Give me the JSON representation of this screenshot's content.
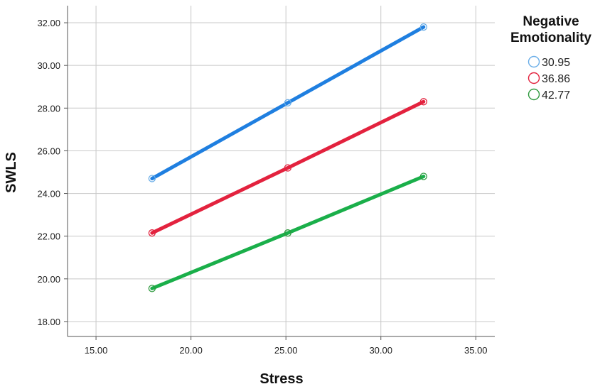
{
  "chart_data": {
    "type": "line",
    "xlabel": "Stress",
    "ylabel": "SWLS",
    "xlim": [
      13.5,
      36.0
    ],
    "ylim": [
      17.3,
      32.8
    ],
    "xticks": [
      "15.00",
      "20.00",
      "25.00",
      "30.00",
      "35.00"
    ],
    "yticks": [
      "18.00",
      "20.00",
      "22.00",
      "24.00",
      "26.00",
      "28.00",
      "30.00",
      "32.00"
    ],
    "grid": true,
    "legend": {
      "title_line1": "Negative",
      "title_line2": "Emotionality",
      "placement": "right"
    },
    "x": [
      17.95,
      25.1,
      32.25
    ],
    "series": [
      {
        "name": "30.95",
        "values": [
          24.7,
          28.25,
          31.8
        ],
        "color": "#1f7fe0",
        "marker_color": "#6aaee8"
      },
      {
        "name": "36.86",
        "values": [
          22.15,
          25.2,
          28.3
        ],
        "color": "#e3223e",
        "marker_color": "#e3223e"
      },
      {
        "name": "42.77",
        "values": [
          19.55,
          22.15,
          24.8
        ],
        "color": "#1aaf4a",
        "marker_color": "#2f9a3f"
      }
    ]
  }
}
